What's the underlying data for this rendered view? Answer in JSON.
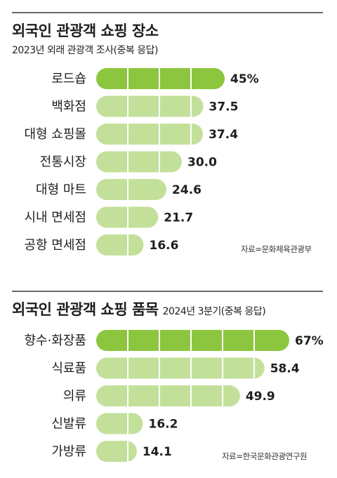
{
  "chart_data": [
    {
      "type": "bar",
      "title": "외국인 관광객 쇼핑 장소",
      "subtitle": "2023년 외래 관광객 조사(중복 응답)",
      "categories": [
        "로드숍",
        "백화점",
        "대형 쇼핑몰",
        "전통시장",
        "대형 마트",
        "시내 면세점",
        "공항 면세점"
      ],
      "values": [
        45,
        37.5,
        37.4,
        30.0,
        24.6,
        21.7,
        16.6
      ],
      "value_labels": [
        "45%",
        "37.5",
        "37.4",
        "30.0",
        "24.6",
        "21.7",
        "16.6"
      ],
      "highlight_index": 0,
      "source": "자료=문화체육관광부"
    },
    {
      "type": "bar",
      "title": "외국인 관광객 쇼핑 품목",
      "subtitle": "2024년 3분기(중복 응답)",
      "categories": [
        "향수·화장품",
        "식료품",
        "의류",
        "신발류",
        "가방류"
      ],
      "values": [
        67,
        58.4,
        49.9,
        16.2,
        14.1
      ],
      "value_labels": [
        "67%",
        "58.4",
        "49.9",
        "16.2",
        "14.1"
      ],
      "highlight_index": 0,
      "source": "자료=한국문화관광연구원"
    }
  ],
  "colors": {
    "highlight_bar": "#8cc63f",
    "bar": "#c3e09b",
    "segment_divider": "#ffffff",
    "rule": "#6b6b6b"
  }
}
